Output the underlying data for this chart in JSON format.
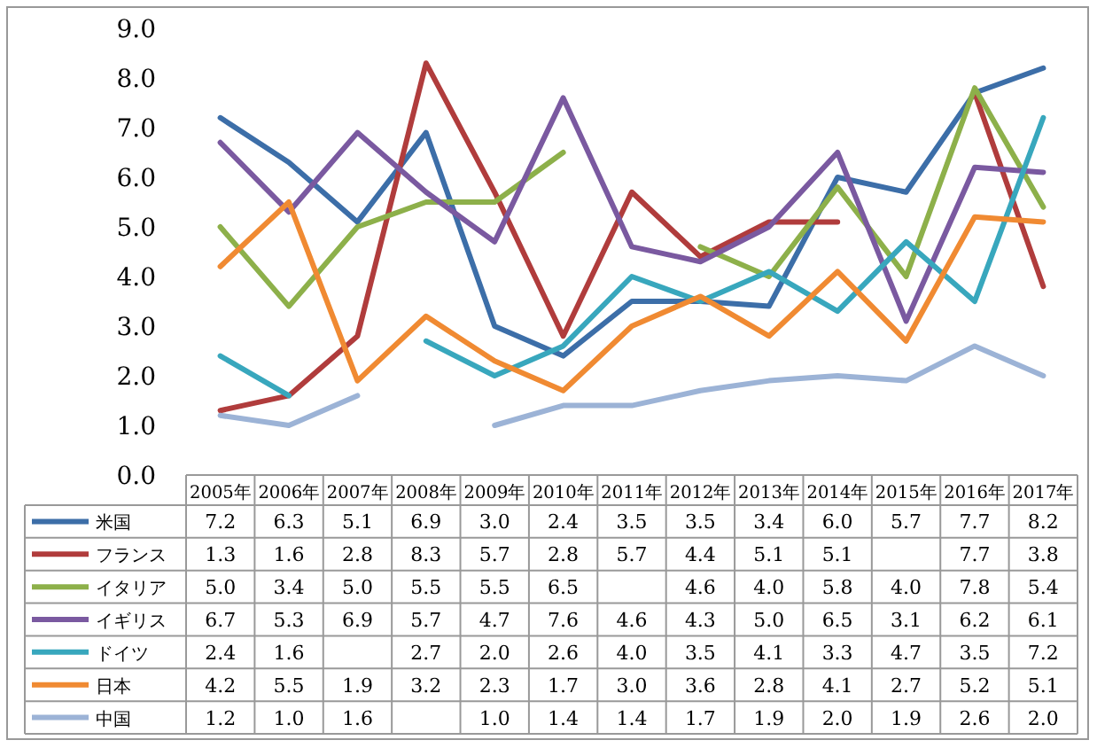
{
  "chart_data": {
    "type": "line",
    "categories": [
      "2005年",
      "2006年",
      "2007年",
      "2008年",
      "2009年",
      "2010年",
      "2011年",
      "2012年",
      "2013年",
      "2014年",
      "2015年",
      "2016年",
      "2017年"
    ],
    "ylim": [
      0,
      9
    ],
    "yticks": [
      {
        "value": 0,
        "label": "0.0"
      },
      {
        "value": 1,
        "label": "1.0"
      },
      {
        "value": 2,
        "label": "2.0"
      },
      {
        "value": 3,
        "label": "3.0"
      },
      {
        "value": 4,
        "label": "4.0"
      },
      {
        "value": 5,
        "label": "5.0"
      },
      {
        "value": 6,
        "label": "6.0"
      },
      {
        "value": 7,
        "label": "7.0"
      },
      {
        "value": 8,
        "label": "8.0"
      },
      {
        "value": 9,
        "label": "9.0"
      }
    ],
    "grid": false,
    "legend": "bottom",
    "marker": "none",
    "line_style": "solid",
    "series": [
      {
        "name": "米国",
        "color": "#3c6ea8",
        "values": [
          7.2,
          6.3,
          5.1,
          6.9,
          3.0,
          2.4,
          3.5,
          3.5,
          3.4,
          6.0,
          5.7,
          7.7,
          8.2
        ],
        "value_labels": [
          "7.2",
          "6.3",
          "5.1",
          "6.9",
          "3.0",
          "2.4",
          "3.5",
          "3.5",
          "3.4",
          "6.0",
          "5.7",
          "7.7",
          "8.2"
        ]
      },
      {
        "name": "フランス",
        "color": "#b03c3c",
        "values": [
          1.3,
          1.6,
          2.8,
          8.3,
          5.7,
          2.8,
          5.7,
          4.4,
          5.1,
          5.1,
          null,
          7.7,
          3.8
        ],
        "value_labels": [
          "1.3",
          "1.6",
          "2.8",
          "8.3",
          "5.7",
          "2.8",
          "5.7",
          "4.4",
          "5.1",
          "5.1",
          null,
          "7.7",
          "3.8"
        ]
      },
      {
        "name": "イタリア",
        "color": "#8db04a",
        "values": [
          5.0,
          3.4,
          5.0,
          5.5,
          5.5,
          6.5,
          null,
          4.6,
          4.0,
          5.8,
          4.0,
          7.8,
          5.4
        ],
        "value_labels": [
          "5.0",
          "3.4",
          "5.0",
          "5.5",
          "5.5",
          "6.5",
          null,
          "4.6",
          "4.0",
          "5.8",
          "4.0",
          "7.8",
          "5.4"
        ]
      },
      {
        "name": "イギリス",
        "color": "#7a59a0",
        "values": [
          6.7,
          5.3,
          6.9,
          5.7,
          4.7,
          7.6,
          4.6,
          4.3,
          5.0,
          6.5,
          3.1,
          6.2,
          6.1
        ],
        "value_labels": [
          "6.7",
          "5.3",
          "6.9",
          "5.7",
          "4.7",
          "7.6",
          "4.6",
          "4.3",
          "5.0",
          "6.5",
          "3.1",
          "6.2",
          "6.1"
        ]
      },
      {
        "name": "ドイツ",
        "color": "#38a7bd",
        "values": [
          2.4,
          1.6,
          null,
          2.7,
          2.0,
          2.6,
          4.0,
          3.5,
          4.1,
          3.3,
          4.7,
          3.5,
          7.2
        ],
        "value_labels": [
          "2.4",
          "1.6",
          null,
          "2.7",
          "2.0",
          "2.6",
          "4.0",
          "3.5",
          "4.1",
          "3.3",
          "4.7",
          "3.5",
          "7.2"
        ]
      },
      {
        "name": "日本",
        "color": "#f08a32",
        "values": [
          4.2,
          5.5,
          1.9,
          3.2,
          2.3,
          1.7,
          3.0,
          3.6,
          2.8,
          4.1,
          2.7,
          5.2,
          5.1
        ],
        "value_labels": [
          "4.2",
          "5.5",
          "1.9",
          "3.2",
          "2.3",
          "1.7",
          "3.0",
          "3.6",
          "2.8",
          "4.1",
          "2.7",
          "5.2",
          "5.1"
        ]
      },
      {
        "name": "中国",
        "color": "#9cb3d6",
        "values": [
          1.2,
          1.0,
          1.6,
          null,
          1.0,
          1.4,
          1.4,
          1.7,
          1.9,
          2.0,
          1.9,
          2.6,
          2.0
        ],
        "value_labels": [
          "1.2",
          "1.0",
          "1.6",
          null,
          "1.0",
          "1.4",
          "1.4",
          "1.7",
          "1.9",
          "2.0",
          "1.9",
          "2.6",
          "2.0"
        ]
      }
    ]
  }
}
